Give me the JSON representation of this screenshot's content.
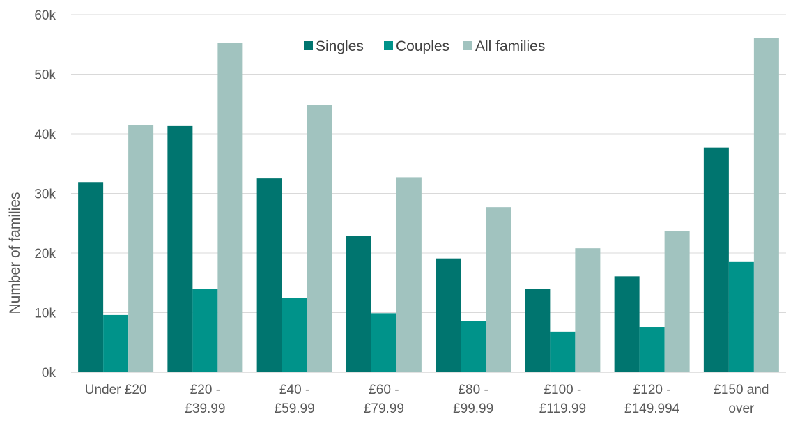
{
  "chart_data": {
    "type": "bar",
    "title": "",
    "xlabel": "",
    "ylabel": "Number of families",
    "categories": [
      [
        "Under £20"
      ],
      [
        "£20 -",
        "£39.99"
      ],
      [
        "£40 -",
        "£59.99"
      ],
      [
        "£60 -",
        "£79.99"
      ],
      [
        "£80 -",
        "£99.99"
      ],
      [
        "£100 -",
        "£119.99"
      ],
      [
        "£120 -",
        "£149.994"
      ],
      [
        "£150 and",
        "over"
      ]
    ],
    "series": [
      {
        "name": "Singles",
        "color": "#00756F",
        "values": [
          31900,
          41300,
          32500,
          22900,
          19100,
          14000,
          16100,
          37700
        ]
      },
      {
        "name": "Couples",
        "color": "#00938A",
        "values": [
          9600,
          14000,
          12400,
          9900,
          8600,
          6800,
          7600,
          18500
        ]
      },
      {
        "name": "All families",
        "color": "#A1C3BF",
        "values": [
          41500,
          55300,
          44900,
          32700,
          27700,
          20800,
          23700,
          56100
        ]
      }
    ],
    "ylim": [
      0,
      60000
    ],
    "yticks": [
      0,
      10000,
      20000,
      30000,
      40000,
      50000,
      60000
    ],
    "ytick_labels": [
      "0k",
      "10k",
      "20k",
      "30k",
      "40k",
      "50k",
      "60k"
    ],
    "grid": true,
    "legend_position": "top-center"
  }
}
